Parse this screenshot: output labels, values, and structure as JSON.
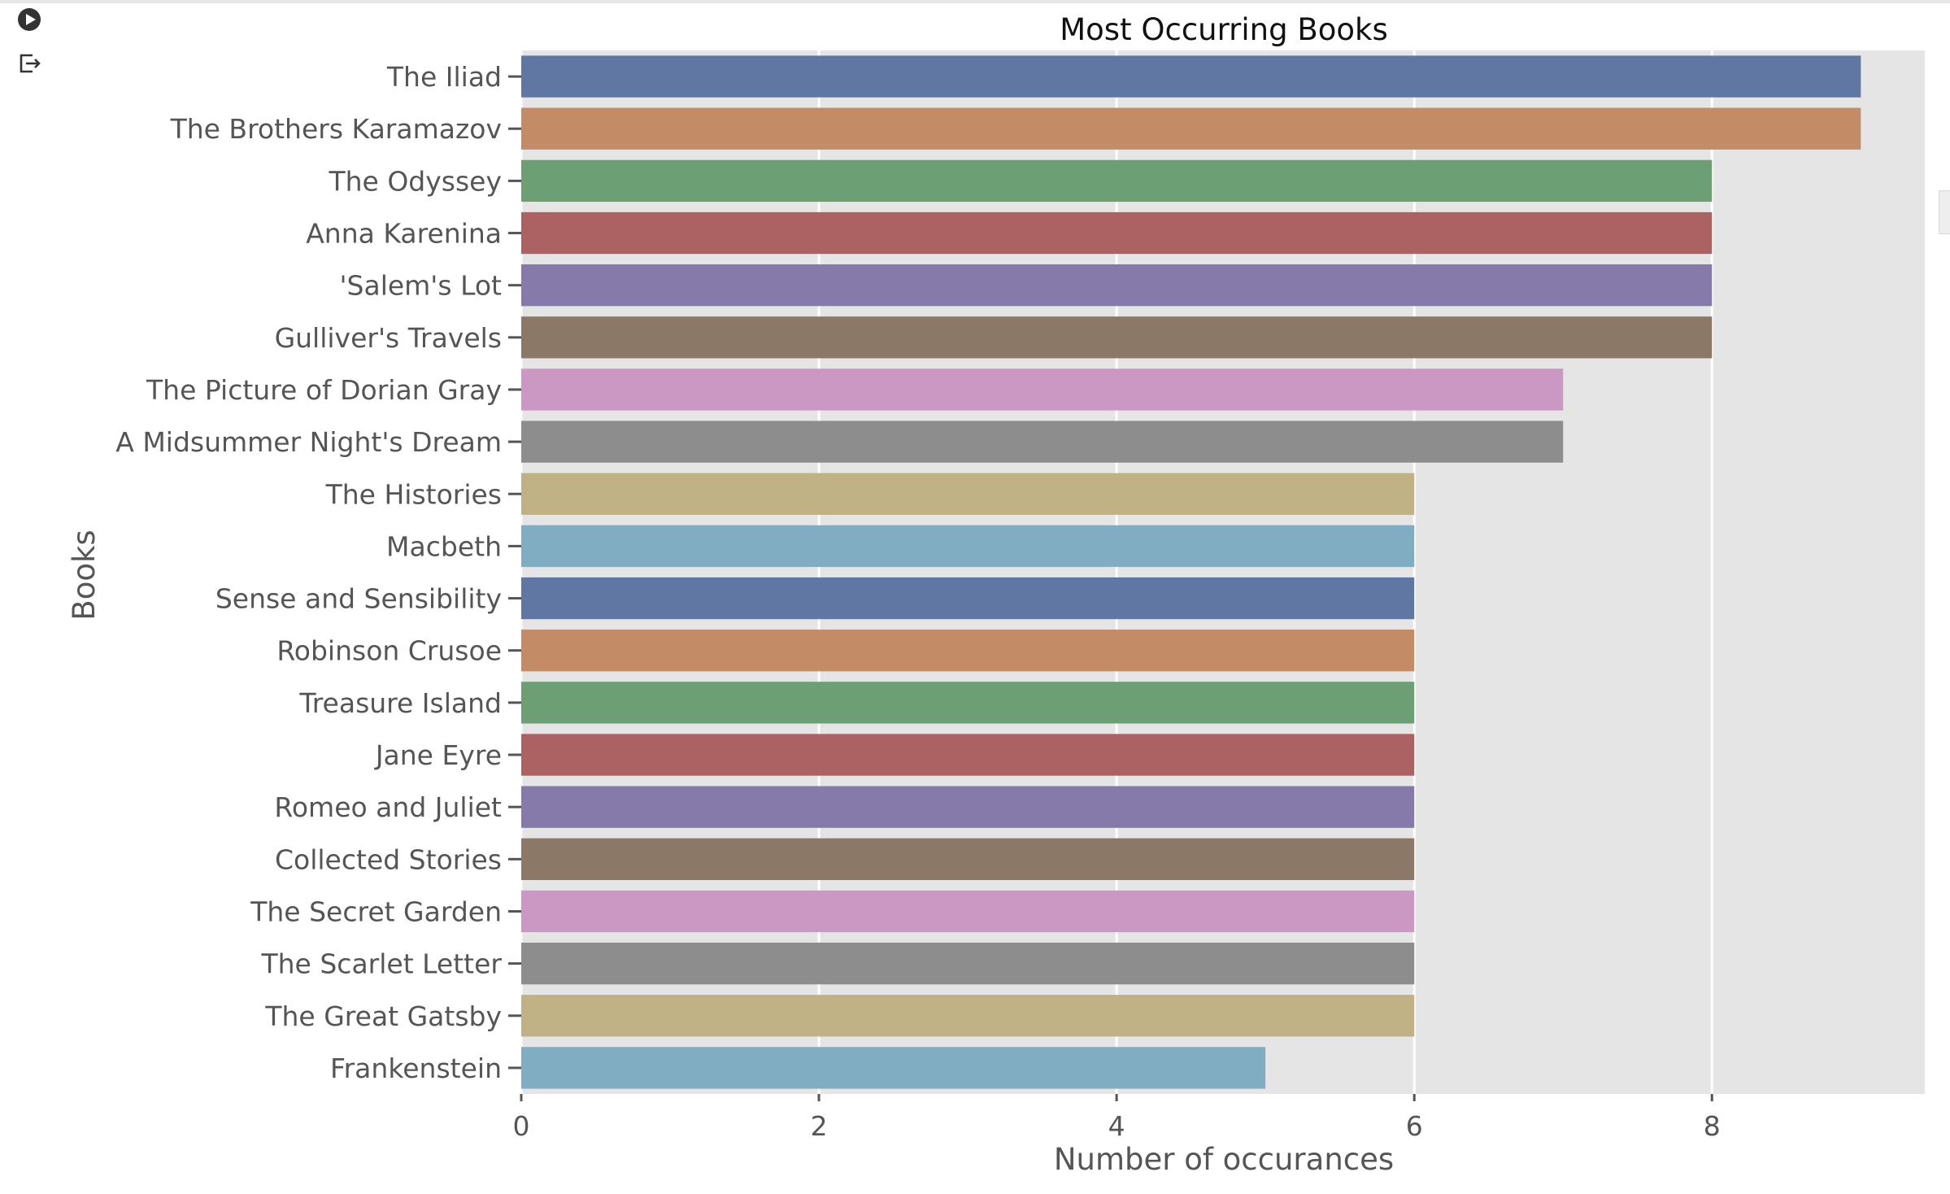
{
  "toolbar": {
    "run_icon": "play-circle-icon",
    "export_icon": "export-icon"
  },
  "colors": {
    "plot_background": "#e5e5e5",
    "grid": "#ffffff",
    "palette": [
      "#6076a3",
      "#c38b66",
      "#6ca074",
      "#ac6263",
      "#857aa9",
      "#8b7866",
      "#ca98c2",
      "#8d8d8d",
      "#c1b285",
      "#80adc1"
    ]
  },
  "chart_data": {
    "type": "bar",
    "orientation": "horizontal",
    "title": "Most Occurring Books",
    "xlabel": "Number of occurances",
    "ylabel": "Books",
    "xlim": [
      0,
      9.43
    ],
    "xticks": [
      0,
      2,
      4,
      6,
      8
    ],
    "grid": true,
    "categories": [
      "The Iliad",
      "The Brothers Karamazov",
      "The Odyssey",
      "Anna Karenina",
      "'Salem's Lot",
      "Gulliver's Travels",
      "The Picture of Dorian Gray",
      "A Midsummer Night's Dream",
      "The Histories",
      "Macbeth",
      "Sense and Sensibility",
      "Robinson Crusoe",
      "Treasure Island",
      "Jane Eyre",
      "Romeo and Juliet",
      "Collected Stories",
      "The Secret Garden",
      "The Scarlet Letter",
      "The Great Gatsby",
      "Frankenstein"
    ],
    "values": [
      9,
      9,
      8,
      8,
      8,
      8,
      7,
      7,
      6,
      6,
      6,
      6,
      6,
      6,
      6,
      6,
      6,
      6,
      6,
      5
    ]
  }
}
